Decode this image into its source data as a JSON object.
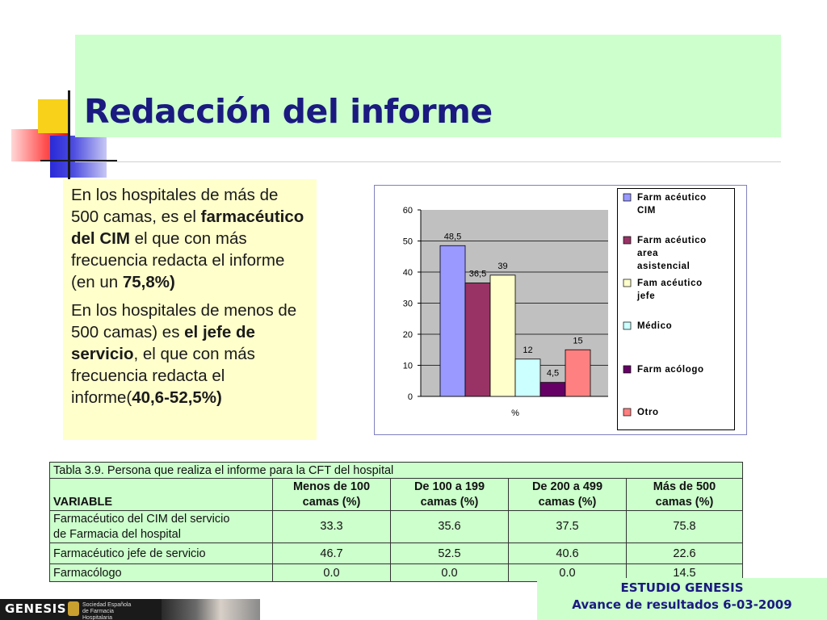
{
  "slide": {
    "title": "Redacción del informe"
  },
  "text_box": {
    "p1_a": "En los hospitales de más de 500 camas, es el ",
    "p1_b": "farmacéutico del CIM",
    "p1_c": "  el que con más frecuencia redacta el informe (en un ",
    "p1_d": "75,8%)",
    "p2_a": "En los hospitales de menos de 500 camas) es ",
    "p2_b": "el jefe de servicio",
    "p2_c": ", el que con más frecuencia redacta el informe(",
    "p2_d": "40,6-52,5%)"
  },
  "chart_data": {
    "type": "bar",
    "categories": [
      "%"
    ],
    "xlabel": "%",
    "ylim": [
      0,
      60
    ],
    "yticks": [
      "0",
      "10",
      "20",
      "30",
      "40",
      "50",
      "60"
    ],
    "plot_bg": "#c0c0c0",
    "series": [
      {
        "name": "Farmacéutico CIM",
        "value": 48.5,
        "label": "48,5",
        "color": "#9999ff"
      },
      {
        "name": "Farmacéutico area asistencial",
        "value": 36.5,
        "label": "36,5",
        "color": "#993366"
      },
      {
        "name": "Famacéutico jefe",
        "value": 39,
        "label": "39",
        "color": "#ffffcc"
      },
      {
        "name": "Médico",
        "value": 12,
        "label": "12",
        "color": "#ccffff"
      },
      {
        "name": "Farmacólogo",
        "value": 4.5,
        "label": "4,5",
        "color": "#660066"
      },
      {
        "name": "Otro",
        "value": 15,
        "label": "15",
        "color": "#ff8080"
      }
    ],
    "legend_lines": [
      [
        "Farm acéutico",
        "CIM"
      ],
      [
        "Farm acéutico",
        "area",
        "asistencial"
      ],
      [
        "Fam acéutico",
        "jefe"
      ],
      [
        "Médico"
      ],
      [
        "Farm acólogo"
      ],
      [
        "Otro"
      ]
    ]
  },
  "table": {
    "caption": "Tabla 3.9. Persona que realiza el informe para la CFT del hospital",
    "var_header": "VARIABLE",
    "col_headers": [
      [
        "Menos de 100",
        "camas (%)"
      ],
      [
        "De 100 a 199",
        "camas (%)"
      ],
      [
        "De 200 a 499",
        "camas (%)"
      ],
      [
        "Más de 500",
        "camas (%)"
      ]
    ],
    "rows": [
      {
        "label_lines": [
          "Farmacéutico del CIM del servicio",
          "de Farmacia del hospital"
        ],
        "values": [
          "33.3",
          "35.6",
          "37.5",
          "75.8"
        ]
      },
      {
        "label_lines": [
          "Farmacéutico jefe de servicio"
        ],
        "values": [
          "46.7",
          "52.5",
          "40.6",
          "22.6"
        ]
      },
      {
        "label_lines": [
          "Farmacólogo"
        ],
        "values": [
          "0.0",
          "0.0",
          "0.0",
          "14.5"
        ]
      }
    ]
  },
  "footer": {
    "line1": "ESTUDIO GENESIS",
    "line2": "Avance de resultados 6-03-2009",
    "logo_text": "GENESIS",
    "society_text": "Sociedad Española de Farmacia Hospitalaria"
  },
  "colors": {
    "title": "#1a1a80",
    "band": "#ccffcc",
    "textbox": "#ffffcc"
  }
}
